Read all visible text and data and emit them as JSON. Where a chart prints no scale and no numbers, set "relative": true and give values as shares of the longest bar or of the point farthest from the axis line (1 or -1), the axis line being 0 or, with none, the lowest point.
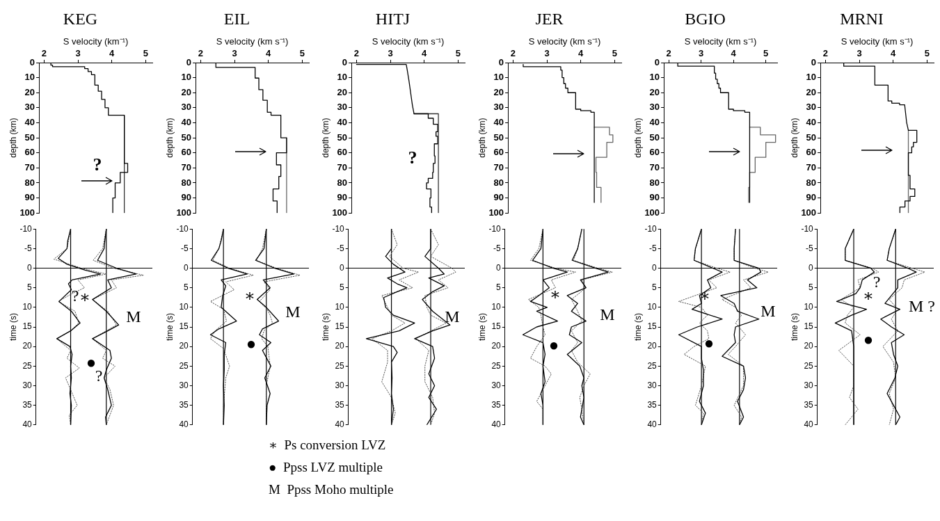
{
  "chart_data": [
    {
      "type": "line",
      "title": "KEG",
      "xlabel": "S velocity (km⁻¹)",
      "ylabel": "depth (km)",
      "xlim": [
        1.85,
        5.2
      ],
      "xticks": [
        2,
        3,
        4,
        5
      ],
      "ylim": [
        100,
        0
      ],
      "yticks": [
        0,
        10,
        20,
        30,
        40,
        50,
        60,
        70,
        80,
        90,
        100
      ],
      "marker": "none",
      "annotations": [
        "?"
      ],
      "series": [
        {
          "color": "#000000",
          "x": [
            2.2,
            2.2,
            2.25,
            2.25,
            3.2,
            3.2,
            3.3,
            3.3,
            3.4,
            3.4,
            3.5,
            3.5,
            3.6,
            3.6,
            3.7,
            3.7,
            3.8,
            3.8,
            3.9,
            3.9,
            4.37,
            4.37,
            4.47,
            4.47,
            4.25,
            4.25,
            4.1,
            4.1,
            4.03,
            4.03
          ],
          "values": [
            0,
            1.7,
            1.7,
            2.7,
            2.7,
            4,
            4,
            6,
            6,
            8,
            8,
            15,
            15,
            19,
            19,
            24.5,
            24.5,
            30,
            30,
            35,
            35,
            67,
            67,
            73,
            73,
            80,
            80,
            90,
            90,
            100
          ]
        },
        {
          "color": "#333333",
          "x": [
            4.37,
            4.37
          ],
          "values": [
            35,
            100
          ]
        }
      ]
    },
    {
      "type": "line",
      "title": "EIL",
      "xlabel": "S velocity (km s⁻¹)",
      "ylabel": "depth (km)",
      "xlim": [
        1.85,
        5.2
      ],
      "xticks": [
        2,
        3,
        4,
        5
      ],
      "ylim": [
        100,
        0
      ],
      "yticks": [
        0,
        10,
        20,
        30,
        40,
        50,
        60,
        70,
        80,
        90,
        100
      ],
      "marker": "none",
      "series": [
        {
          "color": "#000000",
          "x": [
            2.45,
            2.45,
            3.61,
            3.61,
            3.72,
            3.72,
            3.84,
            3.84,
            3.97,
            3.97,
            4.08,
            4.08,
            4.37,
            4.37,
            4.54,
            4.54,
            4.24,
            4.24,
            4.37,
            4.37,
            4.31,
            4.31,
            4.14,
            4.14,
            4.26,
            4.26
          ],
          "values": [
            0,
            3.2,
            3.2,
            10.3,
            10.3,
            18,
            18,
            25,
            25,
            33,
            33,
            35,
            35,
            50,
            50,
            60,
            60,
            68,
            68,
            75.7,
            75.7,
            84,
            84,
            92,
            92,
            100
          ]
        },
        {
          "color": "#666666",
          "x": [
            4.54,
            4.54
          ],
          "values": [
            50,
            100
          ]
        }
      ]
    },
    {
      "type": "line",
      "title": "HITJ",
      "xlabel": "S velocity (km s⁻¹)",
      "ylabel": "depth (km)",
      "xlim": [
        1.85,
        5.2
      ],
      "xticks": [
        2,
        3,
        4,
        5
      ],
      "ylim": [
        100,
        0
      ],
      "yticks": [
        0,
        10,
        20,
        30,
        40,
        50,
        60,
        70,
        80,
        90,
        100
      ],
      "marker": "none",
      "annotations": [
        "?"
      ],
      "series": [
        {
          "color": "#000000",
          "x": [
            2,
            3.47,
            3.5,
            3.55,
            3.6,
            3.65,
            3.7,
            4.12,
            4.12,
            4.27,
            4.27,
            4.4,
            4.4,
            4.35,
            4.35,
            4.4,
            4.4,
            4.3,
            4.3,
            4.32,
            4.32,
            4.27,
            4.27,
            4.25,
            4.25,
            4.12,
            4.12,
            4.07,
            4.07,
            4.2,
            4.2,
            4.17,
            4.17,
            4.22,
            4.22
          ],
          "values": [
            1.2,
            1.2,
            5,
            12,
            20,
            28,
            34,
            34,
            37,
            37,
            41,
            41,
            46,
            46,
            49,
            49,
            54,
            54,
            62,
            62,
            67,
            67,
            73,
            73,
            77,
            77,
            80,
            80,
            84,
            84,
            90,
            90,
            96,
            96,
            100
          ]
        },
        {
          "color": "#333333",
          "x": [
            3.7,
            4.42,
            4.42
          ],
          "values": [
            34,
            34,
            100
          ]
        }
      ]
    },
    {
      "type": "line",
      "title": "JER",
      "xlabel": "S velocity (km s⁻¹)",
      "ylabel": "depth (km)",
      "xlim": [
        1.85,
        5.2
      ],
      "xticks": [
        2,
        3,
        4,
        5
      ],
      "ylim": [
        100,
        0
      ],
      "yticks": [
        0,
        10,
        20,
        30,
        40,
        50,
        60,
        70,
        80,
        90,
        100
      ],
      "marker": "none",
      "series": [
        {
          "color": "#000000",
          "x": [
            2.3,
            2.3,
            3.41,
            3.41,
            3.45,
            3.45,
            3.5,
            3.5,
            3.55,
            3.55,
            3.62,
            3.62,
            3.85,
            3.85,
            4.0,
            4.0,
            4.3,
            4.3,
            4.4,
            4.4
          ],
          "values": [
            1.2,
            2.7,
            2.7,
            5,
            5,
            10,
            10,
            14,
            14,
            17,
            17,
            20,
            20,
            31,
            31,
            32,
            32,
            33,
            33,
            93
          ]
        },
        {
          "color": "#666666",
          "x": [
            4.4,
            4.85,
            4.85,
            4.95,
            4.95,
            4.77,
            4.77,
            4.45,
            4.45,
            4.47,
            4.47,
            4.6,
            4.6
          ],
          "values": [
            43,
            43,
            48,
            48,
            53,
            53,
            63,
            63,
            73,
            73,
            83,
            83,
            93
          ]
        }
      ]
    },
    {
      "type": "line",
      "title": "BGIO",
      "xlabel": "S velocity (km s⁻¹)",
      "ylabel": "depth (km)",
      "xlim": [
        1.85,
        5.35
      ],
      "xticks": [
        2,
        3,
        4,
        5
      ],
      "ylim": [
        100,
        0
      ],
      "yticks": [
        0,
        10,
        20,
        30,
        40,
        50,
        60,
        70,
        80,
        90,
        100
      ],
      "marker": "none",
      "series": [
        {
          "color": "#000000",
          "x": [
            2.28,
            2.28,
            3.41,
            3.41,
            3.45,
            3.45,
            3.5,
            3.5,
            3.55,
            3.55,
            3.6,
            3.6,
            3.85,
            3.85,
            4.0,
            4.0,
            4.35,
            4.35,
            4.5,
            4.5
          ],
          "values": [
            0,
            2.4,
            2.4,
            7,
            7,
            11,
            11,
            14,
            14,
            17,
            17,
            20,
            20,
            31,
            31,
            32,
            32,
            33,
            33,
            93
          ]
        },
        {
          "color": "#666666",
          "x": [
            4.5,
            4.83,
            4.83,
            5.3,
            5.3,
            5.0,
            5.0,
            4.67,
            4.67,
            4.5,
            4.5,
            4.47,
            4.47
          ],
          "values": [
            43,
            43,
            48,
            48,
            53,
            53,
            63,
            63,
            73,
            73,
            83,
            83,
            93
          ]
        }
      ]
    },
    {
      "type": "line",
      "title": "MRNI",
      "xlabel": "S velocity (km s⁻¹)",
      "ylabel": "depth (km)",
      "xlim": [
        1.85,
        5.2
      ],
      "xticks": [
        2,
        3,
        4,
        5
      ],
      "ylim": [
        100,
        0
      ],
      "yticks": [
        0,
        10,
        20,
        30,
        40,
        50,
        60,
        70,
        80,
        90,
        100
      ],
      "marker": "none",
      "series": [
        {
          "color": "#000000",
          "x": [
            2.54,
            2.54,
            3.46,
            3.46,
            3.85,
            3.85,
            3.96,
            3.96,
            4.19,
            4.19,
            4.34,
            4.4,
            4.45,
            4.7,
            4.7,
            4.6,
            4.6,
            4.55,
            4.55,
            4.45,
            4.45,
            4.5,
            4.5,
            4.64,
            4.64,
            4.5,
            4.5,
            4.35,
            4.35,
            4.2,
            4.2
          ],
          "values": [
            0,
            2.4,
            2.4,
            15,
            15,
            25.5,
            25.5,
            27,
            27,
            28,
            28,
            40,
            45,
            45,
            53,
            53,
            56,
            56,
            60,
            60,
            75,
            75,
            84,
            84,
            89,
            89,
            92,
            92,
            96,
            96,
            100
          ]
        },
        {
          "color": "#666666",
          "x": [
            4.45,
            4.45
          ],
          "values": [
            45,
            100
          ]
        }
      ]
    },
    {
      "type": "line",
      "orientation": "horizontal",
      "relative": true,
      "ylabel": "time (s)",
      "ylim": [
        40,
        -10
      ],
      "yticks": [
        -10,
        -5,
        0,
        5,
        10,
        15,
        20,
        25,
        30,
        35,
        40
      ],
      "marker": "none",
      "ref_lines": [
        {
          "axis": "x",
          "value": 0
        },
        {
          "axis": "x",
          "value": 0.49
        },
        {
          "axis": "y",
          "value": 0
        }
      ],
      "annotations": [
        "?",
        "∗",
        "M",
        "●",
        "?"
      ],
      "series": [
        {
          "color": "#000000",
          "x": [
            -10,
            -7,
            -5,
            -2.5,
            -1,
            0.5,
            1.5,
            3,
            4,
            5.5,
            8.5,
            11,
            14,
            16,
            18,
            20,
            22,
            25,
            28,
            32,
            35,
            40
          ],
          "values": [
            0,
            -0.04,
            -0.05,
            -0.17,
            -0.05,
            0.2,
            0.41,
            0.02,
            -0.03,
            0.01,
            -0.16,
            0.01,
            0.13,
            0,
            -0.19,
            -0.01,
            0.02,
            0,
            0.01,
            -0.01,
            0.01,
            0
          ]
        },
        {
          "color": "#555555",
          "line_style": "dotted",
          "x": [
            -10,
            -5,
            -2.3,
            0,
            1.5,
            3,
            5,
            6.5,
            8.5,
            11,
            14,
            16,
            18,
            21,
            23,
            25.5,
            28,
            31,
            35,
            37.5,
            40
          ],
          "values": [
            0,
            -0.05,
            -0.23,
            0.15,
            0.49,
            0.1,
            0.19,
            0.02,
            -0.17,
            0.06,
            0.11,
            0,
            -0.19,
            0,
            -0.05,
            0.12,
            -0.07,
            0,
            0.09,
            -0.02,
            0
          ]
        },
        {
          "color": "#000000",
          "x": [
            -10,
            -7,
            -5,
            -2,
            0,
            1.5,
            3,
            5,
            8,
            11,
            14.5,
            16,
            18,
            21,
            23,
            26,
            28,
            31,
            35,
            38,
            40
          ],
          "values": [
            0.49,
            0.47,
            0.46,
            0.37,
            0.63,
            0.9,
            0.51,
            0.56,
            0.3,
            0.49,
            0.66,
            0.51,
            0.3,
            0.54,
            0.56,
            0.49,
            0.46,
            0.51,
            0.56,
            0.48,
            0.49
          ]
        },
        {
          "color": "#555555",
          "line_style": "dotted",
          "x": [
            -10,
            -5,
            -2,
            0,
            1.8,
            3,
            5,
            8,
            11,
            14.5,
            18,
            21,
            23,
            25,
            28,
            31,
            35,
            40
          ],
          "values": [
            0.49,
            0.44,
            0.31,
            0.59,
            1,
            0.56,
            0.63,
            0.3,
            0.51,
            0.63,
            0.3,
            0.49,
            0.44,
            0.61,
            0.46,
            0.54,
            0.59,
            0.49
          ]
        }
      ]
    },
    {
      "type": "line",
      "orientation": "horizontal",
      "relative": true,
      "ylabel": "time (s)",
      "ylim": [
        40,
        -10
      ],
      "yticks": [
        -10,
        -5,
        0,
        5,
        10,
        15,
        20,
        25,
        30,
        35,
        40
      ],
      "marker": "none",
      "ref_lines": [
        {
          "axis": "x",
          "value": 0
        },
        {
          "axis": "x",
          "value": 0.56
        },
        {
          "axis": "y",
          "value": 0
        }
      ],
      "annotations": [
        "∗",
        "M",
        "●"
      ],
      "series": [
        {
          "color": "#000000",
          "x": [
            -10,
            -7,
            -5,
            -2,
            0,
            1.5,
            3,
            4.5,
            7,
            10,
            13.5,
            15.5,
            17,
            19,
            22,
            26,
            30,
            35,
            40
          ],
          "values": [
            0,
            -0.03,
            -0.06,
            -0.16,
            0.06,
            0.31,
            -0.03,
            0.03,
            -0.01,
            -0.03,
            0.17,
            -0.06,
            -0.17,
            0.03,
            0.01,
            0.01,
            0,
            0.01,
            0
          ]
        },
        {
          "color": "#555555",
          "line_style": "dotted",
          "x": [
            -10,
            -5,
            -2,
            0,
            1.8,
            3.5,
            5.5,
            8.5,
            10.5,
            13.5,
            16,
            18,
            20.5,
            25,
            28,
            35,
            40
          ],
          "values": [
            0,
            -0.06,
            -0.14,
            0.08,
            0.39,
            0.03,
            0.14,
            -0.17,
            0,
            0.04,
            -0.11,
            -0.17,
            0,
            0.08,
            0.03,
            0,
            0
          ]
        },
        {
          "color": "#000000",
          "x": [
            -10,
            -5,
            -2,
            0,
            1.5,
            3,
            5,
            8,
            10,
            13.5,
            15.5,
            17,
            19,
            21,
            25,
            28,
            32,
            35,
            40
          ],
          "values": [
            0.56,
            0.53,
            0.42,
            0.67,
            0.92,
            0.52,
            0.61,
            0.44,
            0.56,
            0.72,
            0.51,
            0.47,
            0.62,
            0.51,
            0.62,
            0.54,
            0.61,
            0.57,
            0.56
          ]
        },
        {
          "color": "#555555",
          "line_style": "dotted",
          "x": [
            -10,
            -5,
            -2,
            0,
            1.8,
            3.5,
            5.5,
            8.5,
            10.5,
            12,
            14,
            16,
            18,
            20,
            25,
            30,
            40
          ],
          "values": [
            0.56,
            0.51,
            0.43,
            0.69,
            1,
            0.53,
            0.61,
            0.47,
            0.57,
            0.61,
            0.64,
            0.53,
            0.5,
            0.58,
            0.61,
            0.56,
            0.56
          ]
        }
      ]
    },
    {
      "type": "line",
      "orientation": "horizontal",
      "relative": true,
      "ylabel": "time (s)",
      "ylim": [
        40,
        -10
      ],
      "yticks": [
        -10,
        -5,
        0,
        5,
        10,
        15,
        20,
        25,
        30,
        35,
        40
      ],
      "marker": "none",
      "ref_lines": [
        {
          "axis": "x",
          "value": 0
        },
        {
          "axis": "x",
          "value": 0.61
        },
        {
          "axis": "y",
          "value": 0
        }
      ],
      "annotations": [
        "M"
      ],
      "series": [
        {
          "color": "#000000",
          "x": [
            -10,
            -5,
            -3,
            -1,
            0,
            1,
            2.5,
            4,
            5,
            6,
            7.5,
            10,
            12,
            14,
            16,
            18,
            20,
            21.5,
            24,
            28,
            32,
            36,
            40
          ],
          "values": [
            0,
            0,
            -0.09,
            0.03,
            0.12,
            0.21,
            -0.06,
            0.09,
            0.24,
            0.09,
            -0.12,
            -0.09,
            0.03,
            0.36,
            0.12,
            -0.39,
            0.03,
            0.09,
            0,
            0.01,
            0,
            0.03,
            0
          ]
        },
        {
          "color": "#555555",
          "line_style": "dotted",
          "x": [
            -10,
            -6,
            -3,
            0,
            1,
            3,
            5,
            7,
            10,
            12,
            14,
            16,
            18,
            21,
            24,
            29,
            33,
            37,
            40
          ],
          "values": [
            0,
            0.09,
            -0.03,
            0.18,
            0.42,
            0.12,
            0.33,
            -0.15,
            -0.06,
            0,
            0.21,
            0,
            -0.3,
            -0.06,
            -0.06,
            -0.15,
            0,
            0.06,
            0
          ]
        },
        {
          "color": "#000000",
          "x": [
            -10,
            -5,
            -3,
            0,
            1.5,
            2.5,
            4.5,
            6,
            8,
            11,
            14.5,
            16,
            18,
            20,
            23,
            27,
            30,
            33,
            36,
            40
          ],
          "values": [
            0.61,
            0.61,
            0.52,
            0.73,
            0.82,
            0.58,
            0.82,
            0.64,
            0.48,
            0.64,
            0.91,
            0.64,
            0.36,
            0.64,
            0.67,
            0.58,
            0.67,
            0.58,
            0.7,
            0.55
          ]
        },
        {
          "color": "#555555",
          "line_style": "dotted",
          "x": [
            -10,
            -6,
            -3,
            0,
            1,
            3,
            5,
            7,
            10,
            12,
            14,
            18,
            21,
            25,
            29,
            33,
            37,
            40
          ],
          "values": [
            0.61,
            0.73,
            0.61,
            0.94,
            1,
            0.73,
            0.88,
            0.52,
            0.55,
            0.61,
            0.85,
            0.38,
            0.58,
            0.52,
            0.52,
            0.64,
            0.67,
            0.61
          ]
        }
      ]
    },
    {
      "type": "line",
      "orientation": "horizontal",
      "relative": true,
      "ylabel": "time (s)",
      "ylim": [
        40,
        -10
      ],
      "yticks": [
        -10,
        -5,
        0,
        5,
        10,
        15,
        20,
        25,
        30,
        35,
        40
      ],
      "marker": "none",
      "ref_lines": [
        {
          "axis": "x",
          "value": 0
        },
        {
          "axis": "x",
          "value": 0.59
        },
        {
          "axis": "y",
          "value": 0
        }
      ],
      "annotations": [
        "∗",
        "M",
        "●"
      ],
      "series": [
        {
          "color": "#000000",
          "x": [
            -10,
            -5,
            -2,
            0,
            1,
            3,
            5,
            7,
            8.5,
            10,
            11,
            13.5,
            15,
            17,
            19,
            22,
            25,
            29,
            32,
            35,
            40
          ],
          "values": [
            0,
            -0.03,
            -0.15,
            0.15,
            0.35,
            0,
            0.09,
            -0.06,
            -0.18,
            0.06,
            -0.09,
            0.21,
            -0.09,
            -0.29,
            0,
            0.03,
            0,
            0.03,
            -0.03,
            0,
            0
          ]
        },
        {
          "color": "#555555",
          "line_style": "dotted",
          "x": [
            -10,
            -5,
            -2,
            0,
            1,
            3,
            5,
            8,
            10,
            12,
            15,
            17,
            20,
            23,
            25,
            27,
            31,
            34,
            36,
            40
          ],
          "values": [
            0,
            -0.06,
            -0.18,
            0.18,
            0.47,
            0.12,
            0.18,
            -0.21,
            -0.06,
            -0.03,
            0,
            0.03,
            -0.09,
            -0.18,
            0.03,
            0.12,
            0,
            -0.09,
            0,
            0
          ]
        },
        {
          "color": "#000000",
          "x": [
            -10,
            -5,
            -2,
            0,
            1,
            3,
            5,
            7,
            9,
            11,
            13.5,
            15,
            17,
            19,
            22,
            25,
            28,
            30,
            33,
            38,
            40
          ],
          "values": [
            0.56,
            0.5,
            0.42,
            0.76,
            0.94,
            0.54,
            0.62,
            0.35,
            0.5,
            0.41,
            0.62,
            0.41,
            0.38,
            0.56,
            0.35,
            0.53,
            0.59,
            0.56,
            0.59,
            0.54,
            0.59
          ]
        },
        {
          "color": "#555555",
          "line_style": "dotted",
          "x": [
            -10,
            -5,
            -2,
            0,
            1,
            3,
            5,
            8,
            11,
            13.5,
            16,
            19,
            21,
            24,
            27,
            30,
            33,
            36,
            40
          ],
          "values": [
            0.56,
            0.5,
            0.44,
            0.79,
            1,
            0.56,
            0.62,
            0.41,
            0.5,
            0.56,
            0.41,
            0.5,
            0.41,
            0.5,
            0.68,
            0.59,
            0.53,
            0.56,
            0.59
          ]
        }
      ]
    },
    {
      "type": "line",
      "orientation": "horizontal",
      "relative": true,
      "ylabel": "time (s)",
      "ylim": [
        40,
        -10
      ],
      "yticks": [
        -10,
        -5,
        0,
        5,
        10,
        15,
        20,
        25,
        30,
        35,
        40
      ],
      "marker": "none",
      "ref_lines": [
        {
          "axis": "x",
          "value": 0
        },
        {
          "axis": "x",
          "value": 0.57
        },
        {
          "axis": "y",
          "value": 0
        }
      ],
      "annotations": [
        "∗",
        "M",
        "●"
      ],
      "series": [
        {
          "color": "#000000",
          "x": [
            -10,
            -5,
            -2,
            0,
            1,
            3,
            5,
            7,
            9,
            10.5,
            13,
            15,
            17,
            20,
            23,
            26,
            30,
            34,
            37,
            40
          ],
          "values": [
            0,
            -0.09,
            -0.11,
            0.17,
            0.31,
            0.09,
            0.14,
            -0.03,
            0,
            -0.14,
            0.31,
            -0.06,
            -0.34,
            0,
            0,
            0.03,
            0.03,
            -0.03,
            0.06,
            0
          ]
        },
        {
          "color": "#555555",
          "line_style": "dotted",
          "x": [
            -10,
            -5,
            -2,
            0,
            1,
            3,
            5,
            8.5,
            10,
            12,
            14,
            16,
            18,
            20,
            22,
            25,
            30,
            35,
            37,
            40
          ],
          "values": [
            0,
            -0.09,
            -0.11,
            0.23,
            0.43,
            0.11,
            0.23,
            -0.34,
            0,
            0.09,
            -0.03,
            0.09,
            0.11,
            -0.11,
            -0.26,
            0.06,
            0,
            -0.09,
            0.03,
            0
          ]
        },
        {
          "color": "#000000",
          "x": [
            -10,
            -5,
            -2,
            0,
            1,
            3,
            5,
            7,
            9,
            11,
            13,
            15,
            17,
            19,
            22.5,
            25,
            28,
            31,
            34,
            38,
            40
          ],
          "values": [
            0.51,
            0.49,
            0.49,
            0.86,
            0.89,
            0.69,
            0.83,
            0.29,
            0.49,
            0.54,
            0.86,
            0.51,
            0.49,
            0.51,
            0.31,
            0.63,
            0.66,
            0.63,
            0.54,
            0.63,
            0.57
          ]
        },
        {
          "color": "#555555",
          "line_style": "dotted",
          "x": [
            -10,
            -5,
            -2,
            0,
            1,
            3,
            5,
            8,
            10,
            12,
            14,
            17,
            20,
            22,
            25,
            30,
            35,
            38,
            40
          ],
          "values": [
            0.51,
            0.49,
            0.49,
            0.8,
            1,
            0.63,
            0.74,
            0.31,
            0.51,
            0.6,
            0.51,
            0.66,
            0.51,
            0.4,
            0.63,
            0.63,
            0.49,
            0.6,
            0.57
          ]
        }
      ]
    },
    {
      "type": "line",
      "orientation": "horizontal",
      "relative": true,
      "ylabel": "time (s)",
      "ylim": [
        40,
        -10
      ],
      "yticks": [
        -10,
        -5,
        0,
        5,
        10,
        15,
        20,
        25,
        30,
        35,
        40
      ],
      "marker": "none",
      "ref_lines": [
        {
          "axis": "x",
          "value": 0
        },
        {
          "axis": "x",
          "value": 0.59
        },
        {
          "axis": "y",
          "value": 0
        }
      ],
      "annotations": [
        "?",
        "∗",
        "M ?",
        "●"
      ],
      "series": [
        {
          "color": "#000000",
          "x": [
            -10,
            -5,
            -2,
            0,
            1,
            3,
            5,
            6.5,
            8.5,
            10.5,
            12,
            14,
            16,
            20,
            25,
            30,
            35,
            40
          ],
          "values": [
            0,
            -0.12,
            -0.12,
            0.24,
            0.29,
            0.12,
            0.09,
            0.03,
            -0.24,
            0.18,
            -0.03,
            -0.26,
            -0.03,
            0,
            0,
            0,
            0,
            0
          ]
        },
        {
          "color": "#555555",
          "line_style": "dotted",
          "x": [
            -10,
            -5,
            -2,
            0,
            1,
            3,
            5,
            8,
            10,
            12,
            14,
            17,
            21,
            25,
            30,
            33,
            36,
            40
          ],
          "values": [
            0,
            -0.12,
            -0.12,
            0.26,
            0.35,
            0.06,
            0.09,
            -0.18,
            0,
            -0.09,
            -0.12,
            0.09,
            -0.21,
            0,
            0,
            -0.06,
            0.06,
            -0.12
          ]
        },
        {
          "color": "#000000",
          "x": [
            -10,
            -5,
            -2,
            0,
            1,
            3,
            5,
            7,
            9,
            10.5,
            13,
            15,
            17,
            19,
            22,
            25,
            28,
            32,
            35,
            38,
            40
          ],
          "values": [
            0.59,
            0.5,
            0.47,
            0.76,
            0.88,
            0.62,
            0.62,
            0.53,
            0.44,
            0.65,
            0.38,
            0.53,
            0.71,
            0.53,
            0.56,
            0.62,
            0.58,
            0.47,
            0.56,
            0.65,
            0.59
          ]
        },
        {
          "color": "#555555",
          "line_style": "dotted",
          "x": [
            -10,
            -5,
            -2,
            0,
            1,
            3,
            5,
            8,
            10.5,
            13,
            16,
            20,
            24,
            28,
            32,
            36,
            40
          ],
          "values": [
            0.59,
            0.5,
            0.47,
            0.82,
            1,
            0.71,
            0.68,
            0.5,
            0.62,
            0.53,
            0.62,
            0.41,
            0.56,
            0.59,
            0.5,
            0.56,
            0.5
          ]
        }
      ]
    },
    {
      "type": "other",
      "annotations": [
        "∗  Ps conversion LVZ",
        "●  Ppss LVZ multiple",
        "M  Ppss Moho multiple"
      ]
    }
  ]
}
